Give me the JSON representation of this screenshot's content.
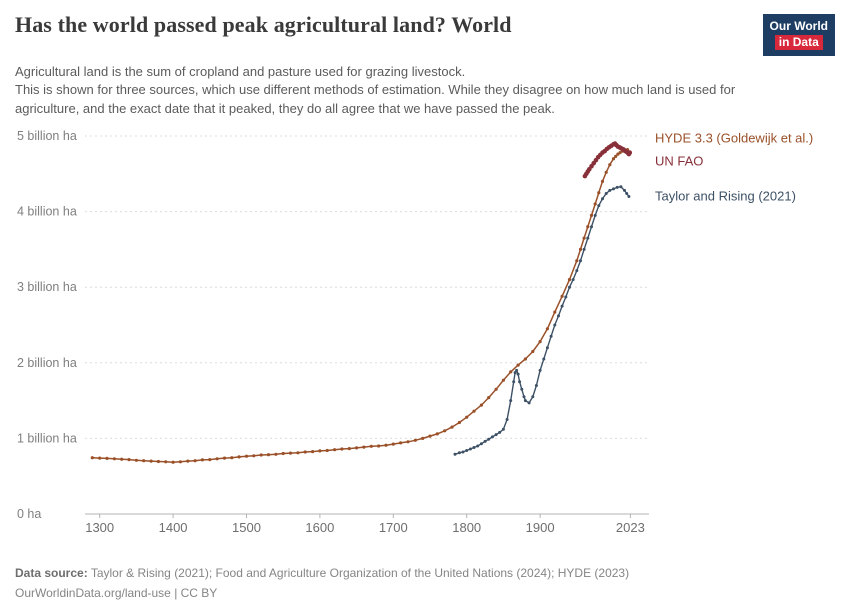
{
  "header": {
    "title": "Has the world passed peak agricultural land? World",
    "subtitle_line1": "Agricultural land is the sum of cropland and pasture used for grazing livestock.",
    "subtitle_rest": "This is shown for three sources, which use different methods of estimation. While they disagree on how much land is used for agriculture, and the exact date that it peaked, they do all agree that we have passed the peak.",
    "logo": {
      "line1": "Our World",
      "line2": "in Data",
      "bg_color": "#1d3d63",
      "accent_color": "#d8283c"
    }
  },
  "chart_data": {
    "type": "line",
    "title": "Has the world passed peak agricultural land? World",
    "xlabel": "",
    "ylabel": "",
    "grid": "horizontal-dashed",
    "legend_position": "right-of-line-ends",
    "x_range": [
      1280,
      2032
    ],
    "y_range": [
      0,
      5
    ],
    "x_ticks": [
      1300,
      1400,
      1500,
      1600,
      1700,
      1800,
      1900,
      2023
    ],
    "y_ticks": [
      {
        "value": 0,
        "label": "0 ha"
      },
      {
        "value": 1,
        "label": "1 billion ha"
      },
      {
        "value": 2,
        "label": "2 billion ha"
      },
      {
        "value": 3,
        "label": "3 billion ha"
      },
      {
        "value": 4,
        "label": "4 billion ha"
      },
      {
        "value": 5,
        "label": "5 billion ha"
      }
    ],
    "y_unit": "billion ha",
    "series": [
      {
        "id": "hyde",
        "name": "HYDE 3.3 (Goldewijk et al.)",
        "color": "#9A5129",
        "width": 1.5,
        "marker": 1.6,
        "label_dy": -10,
        "points": [
          [
            1290,
            0.745
          ],
          [
            1300,
            0.74
          ],
          [
            1310,
            0.735
          ],
          [
            1320,
            0.73
          ],
          [
            1330,
            0.725
          ],
          [
            1340,
            0.72
          ],
          [
            1350,
            0.71
          ],
          [
            1360,
            0.705
          ],
          [
            1370,
            0.7
          ],
          [
            1380,
            0.695
          ],
          [
            1390,
            0.69
          ],
          [
            1400,
            0.685
          ],
          [
            1410,
            0.69
          ],
          [
            1420,
            0.7
          ],
          [
            1430,
            0.705
          ],
          [
            1440,
            0.715
          ],
          [
            1450,
            0.72
          ],
          [
            1460,
            0.73
          ],
          [
            1470,
            0.74
          ],
          [
            1480,
            0.745
          ],
          [
            1490,
            0.755
          ],
          [
            1500,
            0.765
          ],
          [
            1510,
            0.77
          ],
          [
            1520,
            0.78
          ],
          [
            1530,
            0.785
          ],
          [
            1540,
            0.79
          ],
          [
            1550,
            0.8
          ],
          [
            1560,
            0.805
          ],
          [
            1570,
            0.81
          ],
          [
            1580,
            0.82
          ],
          [
            1590,
            0.825
          ],
          [
            1600,
            0.835
          ],
          [
            1610,
            0.84
          ],
          [
            1620,
            0.85
          ],
          [
            1630,
            0.86
          ],
          [
            1640,
            0.865
          ],
          [
            1650,
            0.875
          ],
          [
            1660,
            0.885
          ],
          [
            1670,
            0.895
          ],
          [
            1680,
            0.9
          ],
          [
            1690,
            0.91
          ],
          [
            1700,
            0.925
          ],
          [
            1710,
            0.94
          ],
          [
            1720,
            0.955
          ],
          [
            1730,
            0.975
          ],
          [
            1740,
            1.0
          ],
          [
            1750,
            1.03
          ],
          [
            1760,
            1.06
          ],
          [
            1770,
            1.1
          ],
          [
            1780,
            1.15
          ],
          [
            1790,
            1.21
          ],
          [
            1800,
            1.28
          ],
          [
            1810,
            1.36
          ],
          [
            1820,
            1.44
          ],
          [
            1830,
            1.54
          ],
          [
            1840,
            1.65
          ],
          [
            1850,
            1.77
          ],
          [
            1860,
            1.88
          ],
          [
            1870,
            1.97
          ],
          [
            1880,
            2.05
          ],
          [
            1890,
            2.15
          ],
          [
            1900,
            2.28
          ],
          [
            1910,
            2.45
          ],
          [
            1920,
            2.67
          ],
          [
            1930,
            2.88
          ],
          [
            1940,
            3.1
          ],
          [
            1950,
            3.35
          ],
          [
            1955,
            3.5
          ],
          [
            1960,
            3.65
          ],
          [
            1965,
            3.8
          ],
          [
            1970,
            3.95
          ],
          [
            1975,
            4.1
          ],
          [
            1980,
            4.25
          ],
          [
            1985,
            4.4
          ],
          [
            1990,
            4.52
          ],
          [
            1995,
            4.62
          ],
          [
            2000,
            4.7
          ],
          [
            2003,
            4.73
          ],
          [
            2006,
            4.76
          ],
          [
            2009,
            4.78
          ],
          [
            2012,
            4.8
          ],
          [
            2015,
            4.81
          ],
          [
            2017,
            4.79
          ],
          [
            2019,
            4.82
          ],
          [
            2020,
            4.78
          ],
          [
            2021,
            4.76
          ],
          [
            2022,
            4.77
          ],
          [
            2023,
            4.78
          ]
        ]
      },
      {
        "id": "unfao",
        "name": "UN FAO",
        "color": "#883039",
        "width": 2.5,
        "marker": 2.3,
        "label_dy": 13,
        "points": [
          [
            1961,
            4.47
          ],
          [
            1963,
            4.5
          ],
          [
            1965,
            4.53
          ],
          [
            1967,
            4.56
          ],
          [
            1970,
            4.6
          ],
          [
            1973,
            4.64
          ],
          [
            1976,
            4.68
          ],
          [
            1979,
            4.72
          ],
          [
            1982,
            4.75
          ],
          [
            1985,
            4.78
          ],
          [
            1988,
            4.8
          ],
          [
            1991,
            4.83
          ],
          [
            1994,
            4.85
          ],
          [
            1997,
            4.87
          ],
          [
            2000,
            4.89
          ],
          [
            2002,
            4.9
          ],
          [
            2004,
            4.88
          ],
          [
            2006,
            4.86
          ],
          [
            2008,
            4.85
          ],
          [
            2010,
            4.84
          ],
          [
            2012,
            4.83
          ],
          [
            2014,
            4.82
          ],
          [
            2016,
            4.8
          ],
          [
            2018,
            4.79
          ],
          [
            2020,
            4.77
          ],
          [
            2021,
            4.76
          ],
          [
            2022,
            4.78
          ]
        ]
      },
      {
        "id": "taylor",
        "name": "Taylor and Rising (2021)",
        "color": "#3D5166",
        "width": 1.4,
        "marker": 1.5,
        "label_dy": 4,
        "points": [
          [
            1784,
            0.79
          ],
          [
            1790,
            0.81
          ],
          [
            1795,
            0.82
          ],
          [
            1800,
            0.84
          ],
          [
            1805,
            0.86
          ],
          [
            1810,
            0.88
          ],
          [
            1815,
            0.9
          ],
          [
            1820,
            0.93
          ],
          [
            1825,
            0.96
          ],
          [
            1830,
            0.99
          ],
          [
            1835,
            1.02
          ],
          [
            1840,
            1.05
          ],
          [
            1845,
            1.08
          ],
          [
            1850,
            1.12
          ],
          [
            1855,
            1.25
          ],
          [
            1860,
            1.5
          ],
          [
            1864,
            1.75
          ],
          [
            1866,
            1.87
          ],
          [
            1868,
            1.9
          ],
          [
            1870,
            1.85
          ],
          [
            1872,
            1.75
          ],
          [
            1875,
            1.65
          ],
          [
            1878,
            1.55
          ],
          [
            1880,
            1.5
          ],
          [
            1885,
            1.47
          ],
          [
            1890,
            1.55
          ],
          [
            1895,
            1.7
          ],
          [
            1900,
            1.9
          ],
          [
            1905,
            2.05
          ],
          [
            1910,
            2.2
          ],
          [
            1915,
            2.35
          ],
          [
            1920,
            2.5
          ],
          [
            1925,
            2.62
          ],
          [
            1930,
            2.75
          ],
          [
            1935,
            2.87
          ],
          [
            1940,
            3.0
          ],
          [
            1945,
            3.1
          ],
          [
            1950,
            3.22
          ],
          [
            1955,
            3.35
          ],
          [
            1960,
            3.5
          ],
          [
            1965,
            3.65
          ],
          [
            1970,
            3.8
          ],
          [
            1975,
            3.95
          ],
          [
            1980,
            4.08
          ],
          [
            1985,
            4.17
          ],
          [
            1990,
            4.24
          ],
          [
            1995,
            4.28
          ],
          [
            2000,
            4.3
          ],
          [
            2005,
            4.32
          ],
          [
            2010,
            4.33
          ],
          [
            2015,
            4.28
          ],
          [
            2018,
            4.24
          ],
          [
            2021,
            4.2
          ]
        ]
      }
    ]
  },
  "footer": {
    "datasource_label": "Data source:",
    "datasource_text": "Taylor & Rising (2021); Food and Agriculture Organization of the United Nations (2024); HYDE (2023)",
    "link": "OurWorldinData.org/land-use | CC BY"
  }
}
